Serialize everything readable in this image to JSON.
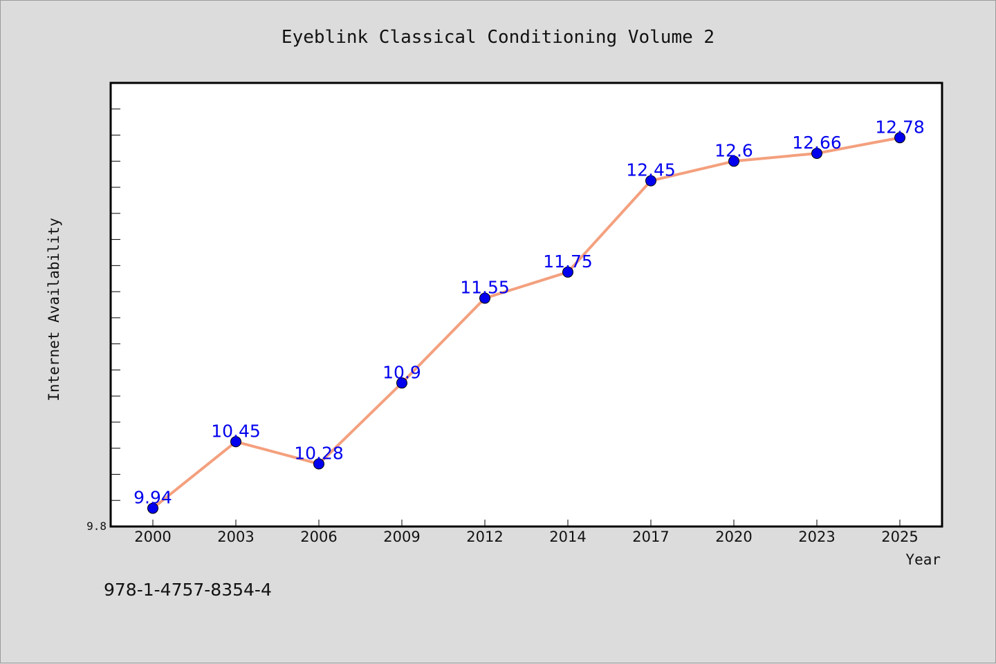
{
  "chart_data": {
    "type": "line",
    "title": "Eyeblink Classical Conditioning Volume 2",
    "xlabel": "Year",
    "ylabel": "Internet Availability",
    "categories": [
      "2000",
      "2003",
      "2006",
      "2009",
      "2012",
      "2014",
      "2017",
      "2020",
      "2023",
      "2025"
    ],
    "series": [
      {
        "values": [
          9.94,
          10.45,
          10.28,
          10.9,
          11.55,
          11.75,
          12.45,
          12.6,
          12.66,
          12.78
        ],
        "labels": [
          "9.94",
          "10.45",
          "10.28",
          "10.9",
          "11.55",
          "11.75",
          "12.45",
          "12.6",
          "12.66",
          "12.78"
        ],
        "line_color": "#f4a07e",
        "marker_color": "#0000ee",
        "label_color": "#0000ee"
      }
    ],
    "ylim": [
      9.8,
      13.2
    ],
    "y_tick_labels": [
      "9.8"
    ],
    "grid": false,
    "legend": "none"
  },
  "footer": {
    "isbn": "978-1-4757-8354-4"
  },
  "colors": {
    "background": "#dcdcdc",
    "plot_area": "#ffffff"
  }
}
